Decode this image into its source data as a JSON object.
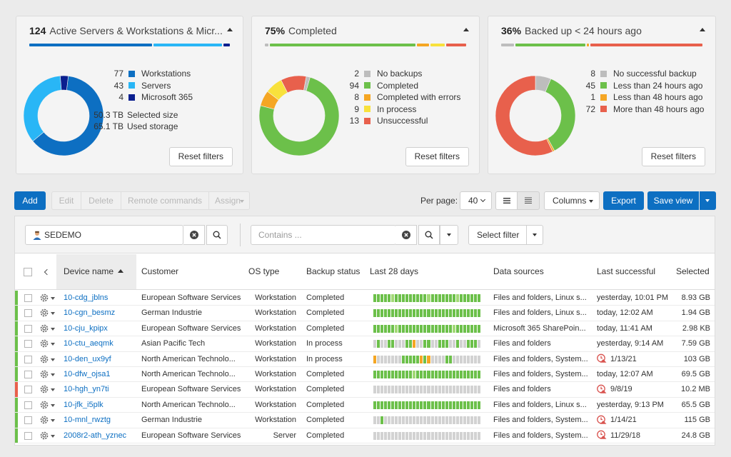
{
  "cards": [
    {
      "count": "124",
      "title": "Active Servers & Workstations & Micr...",
      "legend": [
        {
          "num": "77",
          "label": "Workstations",
          "color": "#0d6fc2",
          "value": 77
        },
        {
          "num": "43",
          "label": "Servers",
          "color": "#29b6f6",
          "value": 43
        },
        {
          "num": "4",
          "label": "Microsoft 365",
          "color": "#0a1f8f",
          "value": 4
        }
      ],
      "extra": [
        {
          "num": "50.3 TB",
          "label": "Selected size"
        },
        {
          "num": "65.1 TB",
          "label": "Used storage"
        }
      ],
      "reset": "Reset filters"
    },
    {
      "count": "75%",
      "title": "Completed",
      "legend": [
        {
          "num": "2",
          "label": "No backups",
          "color": "#bdbdbd",
          "value": 2
        },
        {
          "num": "94",
          "label": "Completed",
          "color": "#6cc04a",
          "value": 94
        },
        {
          "num": "8",
          "label": "Completed with errors",
          "color": "#f5a623",
          "value": 8
        },
        {
          "num": "9",
          "label": "In process",
          "color": "#f8e13c",
          "value": 9
        },
        {
          "num": "13",
          "label": "Unsuccessful",
          "color": "#e8604c",
          "value": 13
        }
      ],
      "reset": "Reset filters"
    },
    {
      "count": "36%",
      "title": "Backed up < 24 hours ago",
      "legend": [
        {
          "num": "8",
          "label": "No successful backup",
          "color": "#bdbdbd",
          "value": 8
        },
        {
          "num": "45",
          "label": "Less than 24 hours ago",
          "color": "#6cc04a",
          "value": 45
        },
        {
          "num": "1",
          "label": "Less than 48 hours ago",
          "color": "#f5a623",
          "value": 1
        },
        {
          "num": "72",
          "label": "More than 48 hours ago",
          "color": "#e8604c",
          "value": 72
        }
      ],
      "reset": "Reset filters"
    }
  ],
  "toolbar": {
    "add": "Add",
    "edit": "Edit",
    "delete": "Delete",
    "remote": "Remote commands",
    "assign": "Assign",
    "per_page_label": "Per page:",
    "per_page_value": "40",
    "columns": "Columns",
    "export": "Export",
    "save_view": "Save view"
  },
  "search": {
    "customer": "SEDEMO",
    "contains_placeholder": "Contains ...",
    "select_filter": "Select filter"
  },
  "columns": [
    "Device name",
    "Customer",
    "OS type",
    "Backup status",
    "Last 28 days",
    "Data sources",
    "Last successful",
    "Selected"
  ],
  "colors": {
    "accent": "#0d6fc2",
    "ok": "#6cc04a",
    "light_ok": "#a3d977",
    "error": "#e8604c",
    "warning": "#f5a623",
    "neutral": "#d2d2d2"
  },
  "rows": [
    {
      "name": "10-cdg_jblns",
      "customer": "European Software Services",
      "os": "Workstation",
      "status": "Completed",
      "sources": "Files and folders, Linux s...",
      "last": "yesterday, 10:01 PM",
      "warn": false,
      "size": "8.93 GB",
      "stripe": "#6cc04a",
      "spark": "GGGGGgGGGGGGGGGgGGGGGGGgGGGGGG"
    },
    {
      "name": "10-cgn_besmz",
      "customer": "German Industrie",
      "os": "Workstation",
      "status": "Completed",
      "sources": "Files and folders, Linux s...",
      "last": "today, 12:02 AM",
      "warn": false,
      "size": "1.94 GB",
      "stripe": "#6cc04a",
      "spark": "GGGGGGGGGGGGGGGGGGGGGGGGGGGGGG"
    },
    {
      "name": "10-cju_kpipx",
      "customer": "European Software Services",
      "os": "Workstation",
      "status": "Completed",
      "sources": "Microsoft 365 SharePoin...",
      "last": "today, 11:41 AM",
      "warn": false,
      "size": "2.98 KB",
      "stripe": "#6cc04a",
      "spark": "GGGGGGgGGGGGGGGGGGGGGGgGGGGGGG"
    },
    {
      "name": "10-ctu_aeqmk",
      "customer": "Asian Pacific Tech",
      "os": "Workstation",
      "status": "In process",
      "sources": "Files and folders",
      "last": "yesterday, 9:14 AM",
      "warn": false,
      "size": "7.59 GB",
      "stripe": "#6cc04a",
      "spark": "NGNNGGNNNGGONNGGNNGGGNNGNNGGGN"
    },
    {
      "name": "10-den_ux9yf",
      "customer": "North American Technolo...",
      "os": "Workstation",
      "status": "In process",
      "sources": "Files and folders, System...",
      "last": "1/13/21",
      "warn": true,
      "size": "103 GB",
      "stripe": "#6cc04a",
      "spark": "ONNNNNNNGGGGGOGONNNNGGNNNNNNNN"
    },
    {
      "name": "10-dfw_ojsa1",
      "customer": "North American Technolo...",
      "os": "Workstation",
      "status": "Completed",
      "sources": "Files and folders, System...",
      "last": "today, 12:07 AM",
      "warn": false,
      "size": "69.5 GB",
      "stripe": "#6cc04a",
      "spark": "GGGGGGGGGGGgGGGGGGGGGGGGGGGGGG"
    },
    {
      "name": "10-hgh_yn7ti",
      "customer": "European Software Services",
      "os": "Workstation",
      "status": "Completed",
      "sources": "Files and folders",
      "last": "9/8/19",
      "warn": true,
      "size": "10.2 MB",
      "stripe": "#e8604c",
      "spark": "NNNNNNNNNNNNNNNNNNNNNNNNNNNNNN"
    },
    {
      "name": "10-jfk_i5plk",
      "customer": "North American Technolo...",
      "os": "Workstation",
      "status": "Completed",
      "sources": "Files and folders, Linux s...",
      "last": "yesterday, 9:13 PM",
      "warn": false,
      "size": "65.5 GB",
      "stripe": "#6cc04a",
      "spark": "GGGGGGGGGGGGGGGGGGGGGGGGGGGGGG"
    },
    {
      "name": "10-mnl_rwztg",
      "customer": "German Industrie",
      "os": "Workstation",
      "status": "Completed",
      "sources": "Files and folders, System...",
      "last": "1/14/21",
      "warn": true,
      "size": "115 GB",
      "stripe": "#6cc04a",
      "spark": "NNGNNNNNNNNNNNNNNNNNNNNNNNNNNN"
    },
    {
      "name": "2008r2-ath_yznec",
      "customer": "European Software Services",
      "os": "Server",
      "status": "Completed",
      "sources": "Files and folders, System...",
      "last": "11/29/18",
      "warn": true,
      "size": "24.8 GB",
      "stripe": "#6cc04a",
      "spark": "NNNNNNNNNNNNNNNNNNNNNNNNNNNNNN"
    }
  ]
}
